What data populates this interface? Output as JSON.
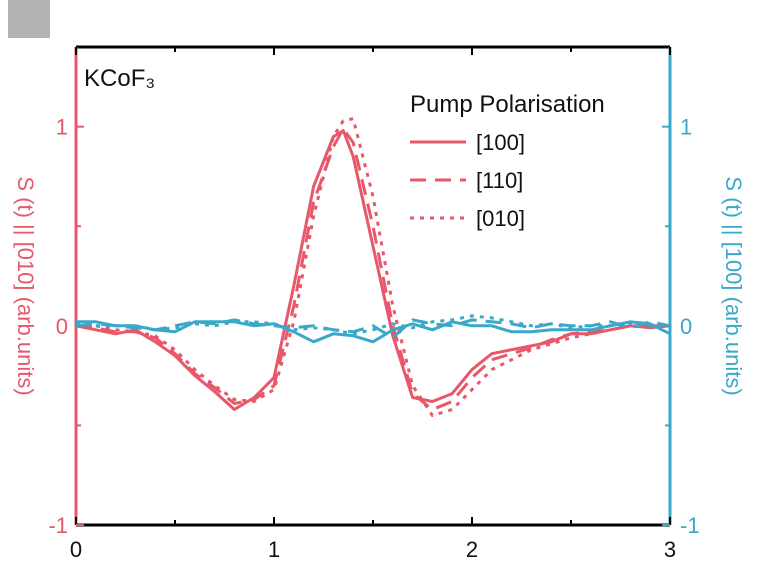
{
  "chart_data": {
    "type": "line",
    "annotation": "KCoF₃",
    "xlim": [
      0,
      3
    ],
    "x_ticks": [
      "0",
      "1",
      "2",
      "3"
    ],
    "y_left": {
      "label": "S (t) || [010] (arb.units)",
      "ylim": [
        -1,
        1.4
      ],
      "ticks": [
        "-1",
        "0",
        "1"
      ],
      "color": "#e8576a"
    },
    "y_right": {
      "label": "S (t) || [100] (arb.units)",
      "ylim": [
        -1,
        1.4
      ],
      "ticks": [
        "-1",
        "0",
        "1"
      ],
      "color": "#3aa8c8"
    },
    "legend": {
      "title": "Pump Polarisation",
      "placement": "top-right",
      "entries": [
        {
          "name": "[100]",
          "dash": "solid"
        },
        {
          "name": "[110]",
          "dash": "dashed"
        },
        {
          "name": "[010]",
          "dash": "dotted"
        }
      ]
    },
    "colors": {
      "red": "#e8576a",
      "blue": "#3aa8c8",
      "panel_tab": "#b3b3b3"
    },
    "series": [
      {
        "name": "[100]",
        "axis": "left",
        "color": "#e8576a",
        "dash": "solid",
        "x": [
          0,
          0.1,
          0.2,
          0.3,
          0.4,
          0.5,
          0.6,
          0.7,
          0.8,
          0.9,
          1.0,
          1.1,
          1.2,
          1.3,
          1.35,
          1.4,
          1.5,
          1.6,
          1.7,
          1.8,
          1.9,
          2.0,
          2.1,
          2.2,
          2.3,
          2.4,
          2.5,
          2.6,
          2.7,
          2.8,
          2.9,
          3.0
        ],
        "y": [
          0.0,
          -0.02,
          -0.04,
          -0.02,
          -0.08,
          -0.15,
          -0.25,
          -0.33,
          -0.42,
          -0.36,
          -0.26,
          0.2,
          0.7,
          0.95,
          0.98,
          0.85,
          0.4,
          -0.05,
          -0.36,
          -0.38,
          -0.34,
          -0.22,
          -0.14,
          -0.12,
          -0.1,
          -0.08,
          -0.04,
          -0.04,
          -0.02,
          0.0,
          -0.01,
          0.0
        ]
      },
      {
        "name": "[110]",
        "axis": "left",
        "color": "#e8576a",
        "dash": "dashed",
        "x": [
          0,
          0.1,
          0.2,
          0.3,
          0.4,
          0.5,
          0.6,
          0.7,
          0.8,
          0.9,
          1.0,
          1.1,
          1.2,
          1.3,
          1.35,
          1.4,
          1.5,
          1.6,
          1.7,
          1.8,
          1.9,
          2.0,
          2.1,
          2.2,
          2.3,
          2.4,
          2.5,
          2.6,
          2.7,
          2.8,
          2.9,
          3.0
        ],
        "y": [
          0.0,
          -0.01,
          -0.03,
          -0.03,
          -0.06,
          -0.14,
          -0.24,
          -0.31,
          -0.39,
          -0.37,
          -0.3,
          0.1,
          0.62,
          0.9,
          0.99,
          0.92,
          0.5,
          0.0,
          -0.34,
          -0.42,
          -0.38,
          -0.26,
          -0.17,
          -0.14,
          -0.11,
          -0.07,
          -0.04,
          -0.03,
          -0.02,
          0.0,
          0.0,
          0.0
        ]
      },
      {
        "name": "[010]",
        "axis": "left",
        "color": "#e8576a",
        "dash": "dotted",
        "x": [
          0,
          0.1,
          0.2,
          0.3,
          0.4,
          0.5,
          0.6,
          0.7,
          0.8,
          0.9,
          1.0,
          1.1,
          1.2,
          1.3,
          1.35,
          1.4,
          1.5,
          1.6,
          1.7,
          1.8,
          1.9,
          2.0,
          2.1,
          2.2,
          2.3,
          2.4,
          2.5,
          2.6,
          2.7,
          2.8,
          2.9,
          3.0
        ],
        "y": [
          0.01,
          0.0,
          -0.02,
          -0.03,
          -0.05,
          -0.12,
          -0.22,
          -0.3,
          -0.37,
          -0.38,
          -0.32,
          0.02,
          0.55,
          0.95,
          1.03,
          1.04,
          0.65,
          0.1,
          -0.3,
          -0.45,
          -0.42,
          -0.32,
          -0.22,
          -0.17,
          -0.12,
          -0.09,
          -0.06,
          -0.04,
          -0.02,
          0.0,
          0.0,
          0.0
        ]
      },
      {
        "name": "[100]",
        "axis": "right",
        "color": "#3aa8c8",
        "dash": "solid",
        "x": [
          0,
          0.1,
          0.2,
          0.3,
          0.4,
          0.5,
          0.6,
          0.7,
          0.8,
          0.9,
          1.0,
          1.1,
          1.2,
          1.3,
          1.4,
          1.5,
          1.6,
          1.7,
          1.8,
          1.9,
          2.0,
          2.1,
          2.2,
          2.3,
          2.4,
          2.5,
          2.6,
          2.7,
          2.8,
          2.9,
          3.0
        ],
        "y": [
          0.02,
          0.02,
          0.0,
          0.0,
          -0.02,
          -0.03,
          0.02,
          0.02,
          0.02,
          0.0,
          0.01,
          -0.03,
          -0.08,
          -0.04,
          -0.05,
          -0.08,
          -0.02,
          0.01,
          -0.02,
          0.02,
          0.0,
          0.0,
          -0.03,
          -0.03,
          -0.02,
          -0.02,
          -0.02,
          0.0,
          0.02,
          0.01,
          -0.04
        ]
      },
      {
        "name": "[110]",
        "axis": "right",
        "color": "#3aa8c8",
        "dash": "dashed",
        "x": [
          0,
          0.1,
          0.2,
          0.3,
          0.4,
          0.5,
          0.6,
          0.7,
          0.8,
          0.9,
          1.0,
          1.1,
          1.2,
          1.3,
          1.4,
          1.5,
          1.6,
          1.7,
          1.8,
          1.9,
          2.0,
          2.1,
          2.2,
          2.3,
          2.4,
          2.5,
          2.6,
          2.7,
          2.8,
          2.9,
          3.0
        ],
        "y": [
          0.0,
          0.01,
          0.0,
          -0.01,
          -0.02,
          0.0,
          0.02,
          0.01,
          0.03,
          0.01,
          0.0,
          -0.01,
          0.0,
          -0.02,
          -0.03,
          0.0,
          -0.06,
          0.03,
          0.01,
          0.0,
          0.03,
          0.02,
          0.01,
          -0.01,
          0.01,
          0.0,
          0.0,
          0.02,
          -0.01,
          0.02,
          0.0
        ]
      },
      {
        "name": "[010]",
        "axis": "right",
        "color": "#3aa8c8",
        "dash": "dotted",
        "x": [
          0,
          0.1,
          0.2,
          0.3,
          0.4,
          0.5,
          0.6,
          0.7,
          0.8,
          0.9,
          1.0,
          1.1,
          1.2,
          1.3,
          1.4,
          1.5,
          1.6,
          1.7,
          1.8,
          1.9,
          2.0,
          2.1,
          2.2,
          2.3,
          2.4,
          2.5,
          2.6,
          2.7,
          2.8,
          2.9,
          3.0
        ],
        "y": [
          0.01,
          0.0,
          0.0,
          0.0,
          -0.02,
          -0.01,
          0.01,
          0.0,
          0.02,
          0.02,
          0.01,
          -0.02,
          -0.01,
          -0.02,
          -0.04,
          -0.02,
          0.01,
          -0.01,
          0.02,
          0.03,
          0.05,
          0.04,
          0.02,
          0.0,
          0.01,
          -0.01,
          0.0,
          0.0,
          0.01,
          0.0,
          0.0
        ]
      }
    ]
  }
}
